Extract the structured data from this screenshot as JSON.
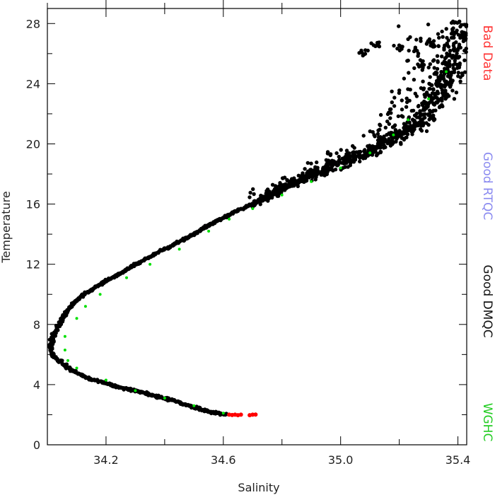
{
  "chart_data": {
    "type": "scatter",
    "title": "",
    "xlabel": "Salinity",
    "ylabel": "Temperature",
    "xlim": [
      34.0,
      35.43
    ],
    "ylim": [
      0,
      29
    ],
    "xticks": [
      34.2,
      34.6,
      35.0,
      35.4
    ],
    "xtick_labels": [
      "34.2",
      "34.6",
      "35.0",
      "35.4"
    ],
    "x_minor_step": 0.2,
    "yticks": [
      0,
      4,
      8,
      12,
      16,
      20,
      24,
      28
    ],
    "ytick_labels": [
      "0",
      "4",
      "8",
      "12",
      "16",
      "20",
      "24",
      "28"
    ],
    "y_minor_step": 2,
    "grid": false,
    "legend_position": "right-vertical",
    "series": [
      {
        "name": "Good DMQC",
        "color": "#000000",
        "marker": "circle",
        "values": [
          [
            34.61,
            2.0
          ],
          [
            34.55,
            2.2
          ],
          [
            34.5,
            2.5
          ],
          [
            34.45,
            2.8
          ],
          [
            34.4,
            3.1
          ],
          [
            34.35,
            3.35
          ],
          [
            34.3,
            3.6
          ],
          [
            34.25,
            3.8
          ],
          [
            34.2,
            4.1
          ],
          [
            34.15,
            4.35
          ],
          [
            34.12,
            4.6
          ],
          [
            34.08,
            5.0
          ],
          [
            34.05,
            5.4
          ],
          [
            34.02,
            5.9
          ],
          [
            34.01,
            6.5
          ],
          [
            34.02,
            7.2
          ],
          [
            34.04,
            8.0
          ],
          [
            34.07,
            9.0
          ],
          [
            34.11,
            9.8
          ],
          [
            34.15,
            10.3
          ],
          [
            34.2,
            10.9
          ],
          [
            34.26,
            11.5
          ],
          [
            34.32,
            12.2
          ],
          [
            34.4,
            13.0
          ],
          [
            34.48,
            13.8
          ],
          [
            34.55,
            14.6
          ],
          [
            34.63,
            15.4
          ],
          [
            34.7,
            16.0
          ],
          [
            34.78,
            16.8
          ],
          [
            34.86,
            17.6
          ],
          [
            34.95,
            18.3
          ],
          [
            35.03,
            19.0
          ],
          [
            35.1,
            19.6
          ],
          [
            35.18,
            20.3
          ],
          [
            35.25,
            21.2
          ],
          [
            35.3,
            22.4
          ],
          [
            35.35,
            23.6
          ],
          [
            35.38,
            24.8
          ],
          [
            35.4,
            26.2
          ],
          [
            35.42,
            27.4
          ],
          [
            35.4,
            28.0
          ]
        ],
        "scatter_bands": [
          {
            "y_from": 16,
            "y_to": 28,
            "x_spread": 0.12
          },
          {
            "y_from": 4,
            "y_to": 16,
            "x_spread": 0.02
          }
        ]
      },
      {
        "name": "Good RTQC",
        "color": "#8080ff",
        "marker": "circle",
        "values": []
      },
      {
        "name": "Bad Data",
        "color": "#ff0000",
        "marker": "circle",
        "values": [
          [
            34.62,
            2.0
          ],
          [
            34.63,
            1.98
          ],
          [
            34.64,
            2.0
          ],
          [
            34.65,
            1.97
          ],
          [
            34.66,
            2.0
          ],
          [
            34.69,
            1.97
          ],
          [
            34.7,
            2.0
          ],
          [
            34.71,
            2.01
          ]
        ]
      },
      {
        "name": "WGHC",
        "color": "#00e000",
        "marker": "circle",
        "values": [
          [
            34.6,
            2.1
          ],
          [
            34.5,
            2.6
          ],
          [
            34.4,
            3.1
          ],
          [
            34.3,
            3.6
          ],
          [
            34.2,
            4.3
          ],
          [
            34.1,
            5.1
          ],
          [
            34.07,
            5.6
          ],
          [
            34.06,
            6.3
          ],
          [
            34.06,
            7.2
          ],
          [
            34.1,
            8.4
          ],
          [
            34.13,
            9.2
          ],
          [
            34.18,
            10.0
          ],
          [
            34.27,
            11.1
          ],
          [
            34.35,
            12.0
          ],
          [
            34.45,
            13.0
          ],
          [
            34.55,
            14.2
          ],
          [
            34.62,
            15.0
          ],
          [
            34.7,
            15.7
          ],
          [
            34.8,
            16.6
          ],
          [
            34.9,
            17.5
          ],
          [
            35.0,
            18.4
          ],
          [
            35.1,
            19.4
          ],
          [
            35.18,
            20.6
          ],
          [
            35.23,
            21.6
          ],
          [
            35.3,
            23.0
          ],
          [
            35.36,
            24.8
          ]
        ]
      }
    ],
    "legend": [
      {
        "label": "Bad Data",
        "color": "#ff3333"
      },
      {
        "label": "Good RTQC",
        "color": "#8a8af0"
      },
      {
        "label": "Good DMQC",
        "color": "#111111"
      },
      {
        "label": "WGHC",
        "color": "#22cc22"
      }
    ]
  }
}
